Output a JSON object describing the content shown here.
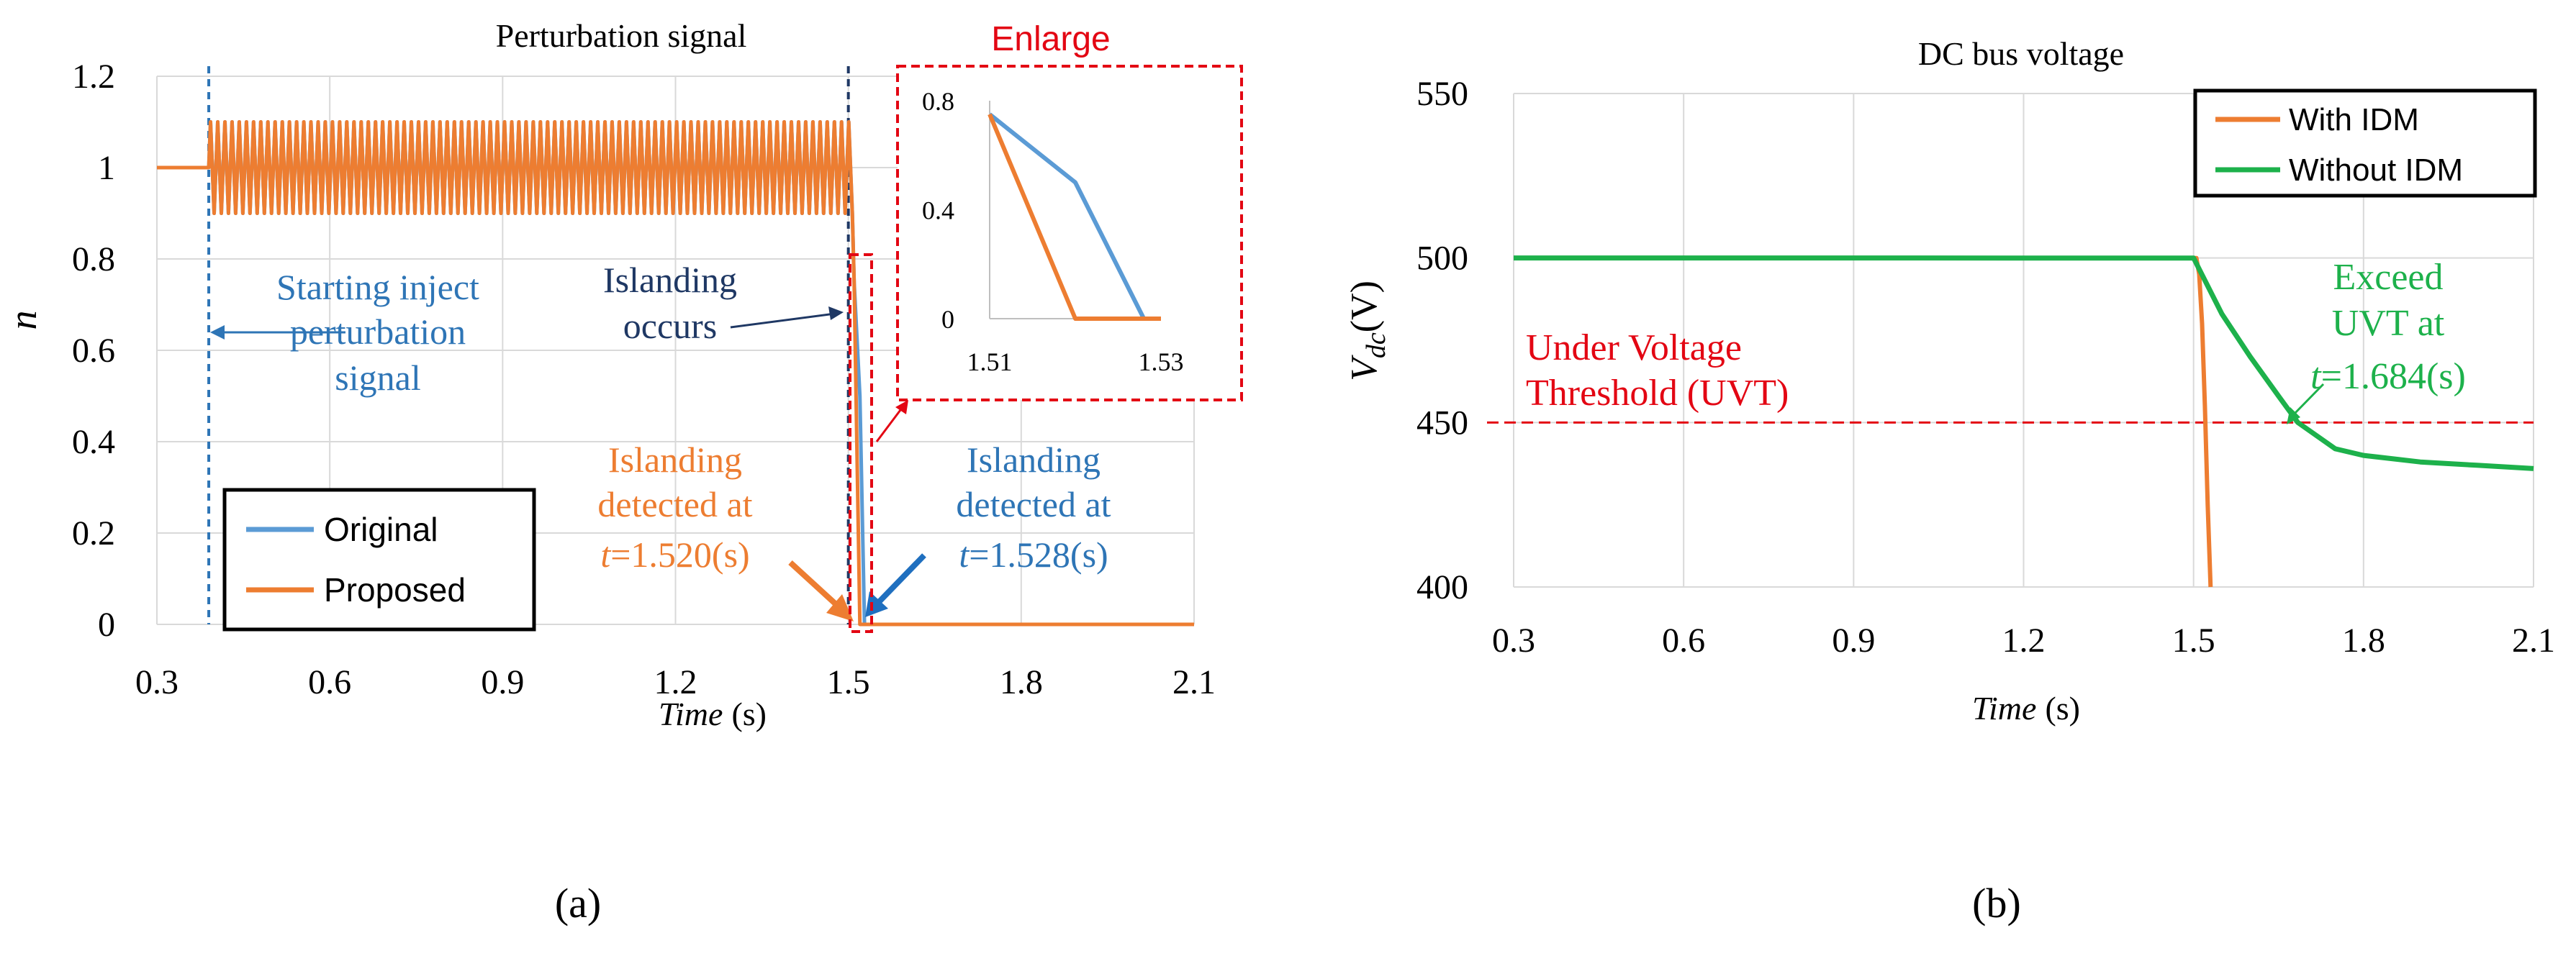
{
  "colors": {
    "original": "#5B9BD5",
    "proposed": "#ED7D31",
    "green": "#1DB14B",
    "red": "#E30613",
    "navy": "#1F3864",
    "blue_text": "#2E75B6",
    "grid": "#D9D9D9",
    "axis": "#BFBFBF"
  },
  "chart_data": [
    {
      "id": "a",
      "type": "line",
      "title": "Perturbation signal",
      "ylabel": "n",
      "xlabel_italic": "Time",
      "xlabel_unit": "(s)",
      "xlim": [
        0.3,
        2.1
      ],
      "ylim": [
        0,
        1.2
      ],
      "xticks": [
        0.3,
        0.6,
        0.9,
        1.2,
        1.5,
        1.8,
        2.1
      ],
      "xtick_labels": [
        "0.3",
        "0.6",
        "0.9",
        "1.2",
        "1.5",
        "1.8",
        "2.1"
      ],
      "yticks": [
        0,
        0.2,
        0.4,
        0.6,
        0.8,
        1.0,
        1.2
      ],
      "ytick_labels": [
        "0",
        "0.2",
        "0.4",
        "0.6",
        "0.8",
        "1",
        "1.2"
      ],
      "legend": {
        "position": "bottom-left",
        "entries": [
          "Original",
          "Proposed"
        ]
      },
      "series": [
        {
          "name": "Original",
          "description": "n = 1 until injection starts at t = 0.39 s, then oscillates between 0.9 and 1.1 until islanding at t = 1.51 s, then falls to 0 at t = 1.528 s",
          "x": [
            0.3,
            0.39,
            1.51,
            1.52,
            1.528,
            2.1
          ],
          "y": [
            1.0,
            1.0,
            0.75,
            0.5,
            0.0,
            0.0
          ]
        },
        {
          "name": "Proposed",
          "description": "n = 1 until injection starts at t = 0.39 s, then oscillates between 0.9 and 1.1 until islanding at t = 1.51 s, then falls to 0 at t = 1.520 s",
          "x": [
            0.3,
            0.39,
            1.51,
            1.52,
            2.1
          ],
          "y": [
            1.0,
            1.0,
            0.75,
            0.0,
            0.0
          ]
        }
      ],
      "oscillation": {
        "start": 0.39,
        "end": 1.51,
        "low": 0.9,
        "high": 1.1,
        "cycles": 90
      },
      "vlines": [
        {
          "x": 0.39,
          "label": "start-inject"
        },
        {
          "x": 1.5,
          "label": "islanding-occurs"
        }
      ],
      "annotations": {
        "starting_inject": [
          "Starting inject",
          "perturbation",
          "signal"
        ],
        "islanding_occurs": [
          "Islanding",
          "occurs"
        ],
        "detected_proposed": [
          "Islanding",
          "detected at"
        ],
        "detected_proposed_t_var": "t",
        "detected_proposed_t_value": "=1.520(s)",
        "detected_original": [
          "Islanding",
          "detected at"
        ],
        "detected_original_t_var": "t",
        "detected_original_t_value": "=1.528(s)"
      },
      "inset": {
        "title": "Enlarge",
        "xlim": [
          1.51,
          1.53
        ],
        "ylim": [
          0,
          0.8
        ],
        "xtick_labels": [
          "1.51",
          "1.53"
        ],
        "ytick_labels": [
          "0",
          "0.4",
          "0.8"
        ],
        "series": [
          {
            "name": "Original",
            "x": [
              1.51,
              1.52,
              1.528
            ],
            "y": [
              0.75,
              0.5,
              0.0
            ]
          },
          {
            "name": "Proposed",
            "x": [
              1.51,
              1.52,
              1.53
            ],
            "y": [
              0.75,
              0.0,
              0.0
            ]
          }
        ]
      },
      "caption": "(a)"
    },
    {
      "id": "b",
      "type": "line",
      "title": "DC bus voltage",
      "ylabel_main": "V",
      "ylabel_sub": "dc",
      "ylabel_unit": "(V)",
      "xlabel_italic": "Time",
      "xlabel_unit": "(s)",
      "xlim": [
        0.3,
        2.1
      ],
      "ylim": [
        400,
        550
      ],
      "xticks": [
        0.3,
        0.6,
        0.9,
        1.2,
        1.5,
        1.8,
        2.1
      ],
      "xtick_labels": [
        "0.3",
        "0.6",
        "0.9",
        "1.2",
        "1.5",
        "1.8",
        "2.1"
      ],
      "yticks": [
        400,
        450,
        500,
        550
      ],
      "ytick_labels": [
        "400",
        "450",
        "500",
        "550"
      ],
      "legend": {
        "position": "top-right",
        "entries": [
          "With IDM",
          "Without IDM"
        ]
      },
      "series": [
        {
          "name": "With IDM",
          "x": [
            0.3,
            1.505,
            1.51,
            1.515,
            1.52,
            1.525,
            1.53
          ],
          "y": [
            500,
            500,
            495,
            480,
            455,
            425,
            400
          ]
        },
        {
          "name": "Without IDM",
          "x": [
            0.3,
            1.5,
            1.55,
            1.6,
            1.65,
            1.684,
            1.75,
            1.8,
            1.9,
            2.0,
            2.1
          ],
          "y": [
            500,
            500,
            483,
            470,
            458,
            450,
            442,
            440,
            438,
            437,
            436
          ]
        }
      ],
      "threshold": {
        "y": 450,
        "label": [
          "Under Voltage",
          "Threshold (UVT)"
        ]
      },
      "annotations": {
        "exceed": [
          "Exceed",
          "UVT at"
        ],
        "exceed_t_var": "t",
        "exceed_t_value": "=1.684(s)"
      },
      "caption": "(b)"
    }
  ]
}
